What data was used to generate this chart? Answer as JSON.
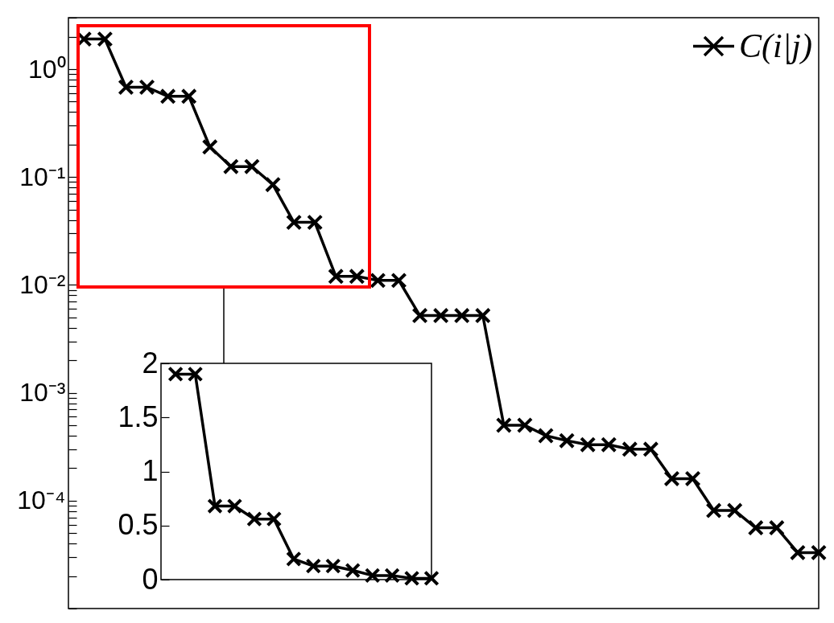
{
  "chart_data": [
    {
      "type": "line",
      "categories": [
        null,
        null,
        null,
        null,
        null,
        null,
        null,
        null,
        null,
        null,
        null,
        null,
        null,
        null,
        null,
        null,
        null,
        null,
        null,
        null,
        null,
        null,
        null,
        null,
        null,
        null,
        null,
        null,
        null,
        null,
        null,
        null,
        null,
        null,
        null,
        null
      ],
      "series": [
        {
          "name": "C(i|j)",
          "color": "#000000",
          "values": [
            1.9,
            1.9,
            0.68,
            0.68,
            0.56,
            0.56,
            0.19,
            0.125,
            0.125,
            0.085,
            0.038,
            0.038,
            0.012,
            0.012,
            0.011,
            0.011,
            0.0052,
            0.0052,
            0.0052,
            0.0052,
            0.0005,
            0.0005,
            0.0004,
            0.00036,
            0.00033,
            0.00033,
            0.0003,
            0.0003,
            0.00016,
            0.00016,
            8.1e-05,
            8.1e-05,
            5.6e-05,
            5.6e-05,
            3.3e-05,
            3.3e-05
          ]
        }
      ],
      "log": true,
      "ylim": [
        1e-05,
        3
      ],
      "yticks": [
        {
          "value": 1e-05,
          "label": null
        },
        {
          "value": 2e-05,
          "label": null
        },
        {
          "value": 3e-05,
          "label": null
        },
        {
          "value": 4e-05,
          "label": null
        },
        {
          "value": 5e-05,
          "label": null
        },
        {
          "value": 6e-05,
          "label": null
        },
        {
          "value": 7e-05,
          "label": null
        },
        {
          "value": 8e-05,
          "label": null
        },
        {
          "value": 9e-05,
          "label": null
        },
        {
          "value": 0.0001,
          "label": "10⁻⁴"
        },
        {
          "value": 0.0002,
          "label": null
        },
        {
          "value": 0.0003,
          "label": null
        },
        {
          "value": 0.0004,
          "label": null
        },
        {
          "value": 0.0005,
          "label": null
        },
        {
          "value": 0.0006,
          "label": null
        },
        {
          "value": 0.0007,
          "label": null
        },
        {
          "value": 0.0008,
          "label": null
        },
        {
          "value": 0.0009,
          "label": null
        },
        {
          "value": 0.001,
          "label": "10⁻³"
        },
        {
          "value": 0.002,
          "label": null
        },
        {
          "value": 0.003,
          "label": null
        },
        {
          "value": 0.004,
          "label": null
        },
        {
          "value": 0.005,
          "label": null
        },
        {
          "value": 0.006,
          "label": null
        },
        {
          "value": 0.007,
          "label": null
        },
        {
          "value": 0.008,
          "label": null
        },
        {
          "value": 0.009,
          "label": null
        },
        {
          "value": 0.01,
          "label": "10⁻²"
        },
        {
          "value": 0.02,
          "label": null
        },
        {
          "value": 0.03,
          "label": null
        },
        {
          "value": 0.04,
          "label": null
        },
        {
          "value": 0.05,
          "label": null
        },
        {
          "value": 0.06,
          "label": null
        },
        {
          "value": 0.07,
          "label": null
        },
        {
          "value": 0.08,
          "label": null
        },
        {
          "value": 0.09,
          "label": null
        },
        {
          "value": 0.1,
          "label": "10⁻¹"
        },
        {
          "value": 0.2,
          "label": null
        },
        {
          "value": 0.3,
          "label": null
        },
        {
          "value": 0.4,
          "label": null
        },
        {
          "value": 0.5,
          "label": null
        },
        {
          "value": 0.6,
          "label": null
        },
        {
          "value": 0.7,
          "label": null
        },
        {
          "value": 0.8,
          "label": null
        },
        {
          "value": 0.9,
          "label": null
        },
        {
          "value": 1,
          "label": "10⁰"
        },
        {
          "value": 2,
          "label": null
        },
        {
          "value": 3,
          "label": null
        }
      ],
      "marker": "cross",
      "line_style": "solid",
      "grid": false,
      "legend": "top right",
      "tick_labels": "y"
    },
    {
      "type": "line",
      "categories": [
        null,
        null,
        null,
        null,
        null,
        null,
        null,
        null,
        null,
        null,
        null,
        null,
        null,
        null
      ],
      "series": [
        {
          "color": "#000000",
          "values": [
            1.9,
            1.9,
            0.68,
            0.68,
            0.56,
            0.56,
            0.19,
            0.125,
            0.125,
            0.085,
            0.038,
            0.038,
            0.012,
            0.012
          ]
        }
      ],
      "ylim": [
        0,
        2
      ],
      "yticks": [
        0,
        0.5,
        1,
        1.5,
        2
      ],
      "marker": "cross",
      "line_style": "solid",
      "grid": false,
      "tick_labels": "y"
    }
  ]
}
